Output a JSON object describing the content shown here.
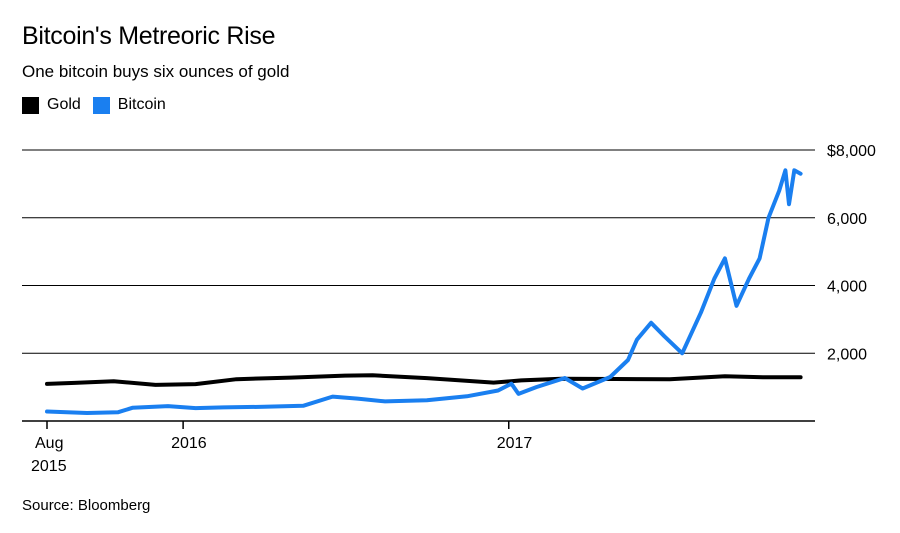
{
  "header": {
    "title": "Bitcoin's Metreoric Rise",
    "subtitle": "One bitcoin buys six ounces of gold"
  },
  "footer": {
    "source": "Source: Bloomberg"
  },
  "chart_data": {
    "type": "line",
    "title": "Bitcoin's Metreoric Rise",
    "subtitle": "One bitcoin buys six ounces of gold",
    "xlabel": "",
    "ylabel": "",
    "xlim": [
      "2015-08-01",
      "2017-11-30"
    ],
    "ylim": [
      0,
      8000
    ],
    "grid": true,
    "legend": "top-left",
    "x_ticks": [
      {
        "date": "2015-08-01",
        "label": "Aug",
        "label2": "2015"
      },
      {
        "date": "2016-01-01",
        "label": "2016",
        "label2": ""
      },
      {
        "date": "2017-01-01",
        "label": "2017",
        "label2": ""
      }
    ],
    "y_ticks": [
      {
        "value": 2000,
        "label": "2,000"
      },
      {
        "value": 4000,
        "label": "4,000"
      },
      {
        "value": 6000,
        "label": "6,000"
      },
      {
        "value": 8000,
        "label": "$8,000"
      }
    ],
    "series": [
      {
        "name": "Gold",
        "color": "#000000",
        "points": [
          [
            "2015-08-01",
            1095
          ],
          [
            "2015-09-01",
            1125
          ],
          [
            "2015-10-15",
            1175
          ],
          [
            "2015-12-01",
            1065
          ],
          [
            "2016-01-15",
            1090
          ],
          [
            "2016-03-01",
            1235
          ],
          [
            "2016-05-01",
            1280
          ],
          [
            "2016-07-01",
            1340
          ],
          [
            "2016-08-01",
            1350
          ],
          [
            "2016-10-01",
            1265
          ],
          [
            "2016-12-15",
            1135
          ],
          [
            "2017-01-15",
            1200
          ],
          [
            "2017-03-01",
            1245
          ],
          [
            "2017-05-01",
            1240
          ],
          [
            "2017-07-01",
            1235
          ],
          [
            "2017-09-01",
            1320
          ],
          [
            "2017-10-15",
            1290
          ],
          [
            "2017-11-25",
            1290
          ]
        ]
      },
      {
        "name": "Bitcoin",
        "color": "#1a7ff0",
        "points": [
          [
            "2015-08-01",
            280
          ],
          [
            "2015-09-15",
            235
          ],
          [
            "2015-10-20",
            260
          ],
          [
            "2015-11-05",
            390
          ],
          [
            "2015-12-15",
            440
          ],
          [
            "2016-01-15",
            380
          ],
          [
            "2016-02-15",
            400
          ],
          [
            "2016-04-01",
            420
          ],
          [
            "2016-05-15",
            450
          ],
          [
            "2016-06-17",
            720
          ],
          [
            "2016-07-15",
            660
          ],
          [
            "2016-08-15",
            580
          ],
          [
            "2016-10-01",
            615
          ],
          [
            "2016-11-15",
            730
          ],
          [
            "2016-12-20",
            900
          ],
          [
            "2017-01-04",
            1100
          ],
          [
            "2017-01-12",
            800
          ],
          [
            "2017-02-01",
            1000
          ],
          [
            "2017-03-05",
            1270
          ],
          [
            "2017-03-25",
            960
          ],
          [
            "2017-04-25",
            1300
          ],
          [
            "2017-05-15",
            1800
          ],
          [
            "2017-05-25",
            2400
          ],
          [
            "2017-06-10",
            2900
          ],
          [
            "2017-06-25",
            2500
          ],
          [
            "2017-07-15",
            2000
          ],
          [
            "2017-08-05",
            3200
          ],
          [
            "2017-08-20",
            4200
          ],
          [
            "2017-09-01",
            4800
          ],
          [
            "2017-09-14",
            3400
          ],
          [
            "2017-09-28",
            4200
          ],
          [
            "2017-10-10",
            4800
          ],
          [
            "2017-10-20",
            6000
          ],
          [
            "2017-11-01",
            6800
          ],
          [
            "2017-11-08",
            7400
          ],
          [
            "2017-11-12",
            6400
          ],
          [
            "2017-11-18",
            7400
          ],
          [
            "2017-11-25",
            7300
          ]
        ]
      }
    ]
  }
}
